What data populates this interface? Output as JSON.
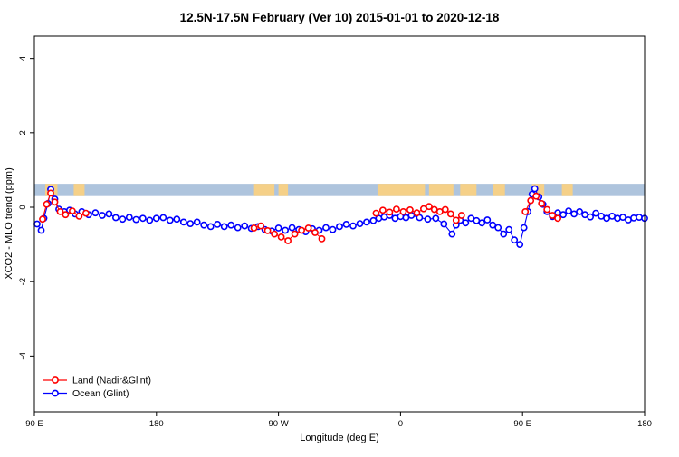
{
  "title": "12.5N-17.5N February (Ver 10)   2015-01-01 to 2020-12-18",
  "chart_data": {
    "type": "scatter",
    "title": "12.5N-17.5N February (Ver 10)   2015-01-01 to 2020-12-18",
    "xlabel": "Longitude (deg E)",
    "ylabel": "XCO2 - MLO trend (ppm)",
    "xlim": [
      90,
      540
    ],
    "ylim": [
      -5.5,
      4.6
    ],
    "grid": false,
    "legend_position": "bottom-left",
    "x_ticks": [
      {
        "value": 90,
        "label": "90 E"
      },
      {
        "value": 180,
        "label": "180"
      },
      {
        "value": 270,
        "label": "90 W"
      },
      {
        "value": 360,
        "label": "0"
      },
      {
        "value": 450,
        "label": "90 E"
      },
      {
        "value": 540,
        "label": "180"
      }
    ],
    "y_ticks": [
      {
        "value": -4,
        "label": "-4"
      },
      {
        "value": -2,
        "label": "-2"
      },
      {
        "value": 0,
        "label": "0"
      },
      {
        "value": 2,
        "label": "2"
      },
      {
        "value": 4,
        "label": "4"
      }
    ],
    "map_band": {
      "description": "thin world-map strip of the 12.5N-17.5N latitude band drawn across the plot",
      "y_range": [
        0.3,
        0.63
      ],
      "ocean_color": "#aec4dd",
      "land_color": "#f5d088",
      "land_segments": [
        [
          98,
          107
        ],
        [
          119,
          127
        ],
        [
          252,
          267
        ],
        [
          270,
          277
        ],
        [
          343,
          378
        ],
        [
          381,
          399
        ],
        [
          404,
          416
        ],
        [
          428,
          437
        ],
        [
          457,
          466
        ],
        [
          479,
          487
        ]
      ]
    },
    "series": [
      {
        "name": "Land (Nadir&Glint)",
        "color": "#ff0000",
        "points": [
          [
            96,
            -0.32
          ],
          [
            99,
            0.08
          ],
          [
            102,
            0.38
          ],
          [
            105,
            0.14
          ],
          [
            109,
            -0.12
          ],
          [
            113,
            -0.2
          ],
          [
            118,
            -0.1
          ],
          [
            123,
            -0.24
          ],
          [
            128,
            -0.16
          ],
          [
            252,
            -0.56
          ],
          [
            257,
            -0.5
          ],
          [
            262,
            -0.63
          ],
          [
            267,
            -0.72
          ],
          [
            272,
            -0.8
          ],
          [
            277,
            -0.9
          ],
          [
            282,
            -0.72
          ],
          [
            287,
            -0.62
          ],
          [
            292,
            -0.56
          ],
          [
            297,
            -0.68
          ],
          [
            302,
            -0.85
          ],
          [
            342,
            -0.16
          ],
          [
            347,
            -0.08
          ],
          [
            352,
            -0.13
          ],
          [
            357,
            -0.05
          ],
          [
            362,
            -0.12
          ],
          [
            367,
            -0.07
          ],
          [
            372,
            -0.15
          ],
          [
            377,
            -0.04
          ],
          [
            381,
            0.02
          ],
          [
            385,
            -0.06
          ],
          [
            389,
            -0.12
          ],
          [
            393,
            -0.06
          ],
          [
            397,
            -0.18
          ],
          [
            401,
            -0.35
          ],
          [
            405,
            -0.22
          ],
          [
            452,
            -0.12
          ],
          [
            456,
            0.18
          ],
          [
            460,
            0.3
          ],
          [
            464,
            0.1
          ],
          [
            468,
            -0.06
          ],
          [
            472,
            -0.22
          ],
          [
            476,
            -0.3
          ]
        ]
      },
      {
        "name": "Ocean (Glint)",
        "color": "#0000ff",
        "points": [
          [
            92,
            -0.45
          ],
          [
            95,
            -0.62
          ],
          [
            97,
            -0.3
          ],
          [
            100,
            0.1
          ],
          [
            102,
            0.48
          ],
          [
            105,
            0.22
          ],
          [
            108,
            -0.05
          ],
          [
            112,
            -0.12
          ],
          [
            116,
            -0.08
          ],
          [
            120,
            -0.18
          ],
          [
            125,
            -0.12
          ],
          [
            130,
            -0.2
          ],
          [
            135,
            -0.15
          ],
          [
            140,
            -0.22
          ],
          [
            145,
            -0.18
          ],
          [
            150,
            -0.28
          ],
          [
            155,
            -0.32
          ],
          [
            160,
            -0.27
          ],
          [
            165,
            -0.33
          ],
          [
            170,
            -0.3
          ],
          [
            175,
            -0.35
          ],
          [
            180,
            -0.3
          ],
          [
            185,
            -0.28
          ],
          [
            190,
            -0.35
          ],
          [
            195,
            -0.32
          ],
          [
            200,
            -0.4
          ],
          [
            205,
            -0.44
          ],
          [
            210,
            -0.4
          ],
          [
            215,
            -0.48
          ],
          [
            220,
            -0.52
          ],
          [
            225,
            -0.46
          ],
          [
            230,
            -0.52
          ],
          [
            235,
            -0.48
          ],
          [
            240,
            -0.55
          ],
          [
            245,
            -0.5
          ],
          [
            250,
            -0.57
          ],
          [
            255,
            -0.52
          ],
          [
            260,
            -0.6
          ],
          [
            265,
            -0.64
          ],
          [
            270,
            -0.56
          ],
          [
            275,
            -0.62
          ],
          [
            280,
            -0.55
          ],
          [
            285,
            -0.6
          ],
          [
            290,
            -0.66
          ],
          [
            295,
            -0.58
          ],
          [
            300,
            -0.62
          ],
          [
            305,
            -0.55
          ],
          [
            310,
            -0.6
          ],
          [
            315,
            -0.52
          ],
          [
            320,
            -0.46
          ],
          [
            325,
            -0.5
          ],
          [
            330,
            -0.44
          ],
          [
            335,
            -0.4
          ],
          [
            340,
            -0.36
          ],
          [
            344,
            -0.3
          ],
          [
            348,
            -0.26
          ],
          [
            352,
            -0.22
          ],
          [
            356,
            -0.3
          ],
          [
            360,
            -0.25
          ],
          [
            364,
            -0.28
          ],
          [
            368,
            -0.22
          ],
          [
            374,
            -0.28
          ],
          [
            380,
            -0.32
          ],
          [
            386,
            -0.3
          ],
          [
            392,
            -0.45
          ],
          [
            398,
            -0.72
          ],
          [
            401,
            -0.48
          ],
          [
            404,
            -0.35
          ],
          [
            408,
            -0.42
          ],
          [
            412,
            -0.3
          ],
          [
            416,
            -0.36
          ],
          [
            420,
            -0.42
          ],
          [
            424,
            -0.34
          ],
          [
            428,
            -0.48
          ],
          [
            432,
            -0.55
          ],
          [
            436,
            -0.72
          ],
          [
            440,
            -0.6
          ],
          [
            444,
            -0.88
          ],
          [
            448,
            -1.0
          ],
          [
            451,
            -0.55
          ],
          [
            454,
            -0.12
          ],
          [
            457,
            0.35
          ],
          [
            459,
            0.5
          ],
          [
            462,
            0.28
          ],
          [
            465,
            0.08
          ],
          [
            468,
            -0.12
          ],
          [
            472,
            -0.25
          ],
          [
            476,
            -0.15
          ],
          [
            480,
            -0.2
          ],
          [
            484,
            -0.1
          ],
          [
            488,
            -0.18
          ],
          [
            492,
            -0.12
          ],
          [
            496,
            -0.2
          ],
          [
            500,
            -0.26
          ],
          [
            504,
            -0.16
          ],
          [
            508,
            -0.24
          ],
          [
            512,
            -0.3
          ],
          [
            516,
            -0.24
          ],
          [
            520,
            -0.3
          ],
          [
            524,
            -0.27
          ],
          [
            528,
            -0.34
          ],
          [
            532,
            -0.29
          ],
          [
            536,
            -0.27
          ],
          [
            540,
            -0.3
          ]
        ]
      }
    ]
  }
}
